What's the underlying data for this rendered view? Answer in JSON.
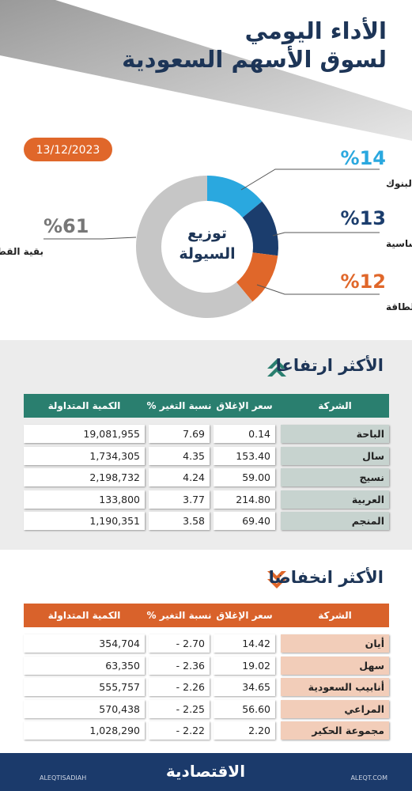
{
  "header": {
    "title_line1": "الأداء اليومي",
    "title_line2": "لسوق الأسهم السعودية",
    "date": "13/12/2023"
  },
  "chart_data": {
    "type": "pie",
    "title": "توزيع السيولة",
    "categories": [
      "البنوك",
      "المواد الأساسية",
      "الطاقة",
      "بقية القطاعات"
    ],
    "values": [
      14,
      13,
      12,
      61
    ],
    "value_labels": [
      "%14",
      "%13",
      "%12",
      "%61"
    ],
    "colors": [
      "#2aa8df",
      "#1b3d6d",
      "#e0672a",
      "#c6c6c6"
    ]
  },
  "tables": {
    "rising": {
      "title": "الأكثر ارتفاعا",
      "columns": [
        "الشركة",
        "سعر الإغلاق",
        "نسبة التغير %",
        "الكمية المتداولة"
      ],
      "rows": [
        [
          "الباحة",
          "0.14",
          "7.69",
          "19,081,955"
        ],
        [
          "سال",
          "153.40",
          "4.35",
          "1,734,305"
        ],
        [
          "نسيج",
          "59.00",
          "4.24",
          "2,198,732"
        ],
        [
          "العربية",
          "214.80",
          "3.77",
          "133,800"
        ],
        [
          "المنجم",
          "69.40",
          "3.58",
          "1,190,351"
        ]
      ]
    },
    "falling": {
      "title": "الأكثر انخفاضا",
      "columns": [
        "الشركة",
        "سعر الإغلاق",
        "نسبة التغير %",
        "الكمية المتداولة"
      ],
      "rows": [
        [
          "أيان",
          "14.42",
          "- 2.70",
          "354,704"
        ],
        [
          "سهل",
          "19.02",
          "- 2.36",
          "63,350"
        ],
        [
          "أنابيب السعودية",
          "34.65",
          "- 2.26",
          "555,757"
        ],
        [
          "المراعي",
          "56.60",
          "- 2.25",
          "570,438"
        ],
        [
          "مجموعة الحكير",
          "2.20",
          "- 2.22",
          "1,028,290"
        ]
      ]
    }
  },
  "footer": {
    "brand": "الاقتصادية",
    "site": "ALEQT.COM",
    "handle": "ALEQTISADIAH"
  }
}
